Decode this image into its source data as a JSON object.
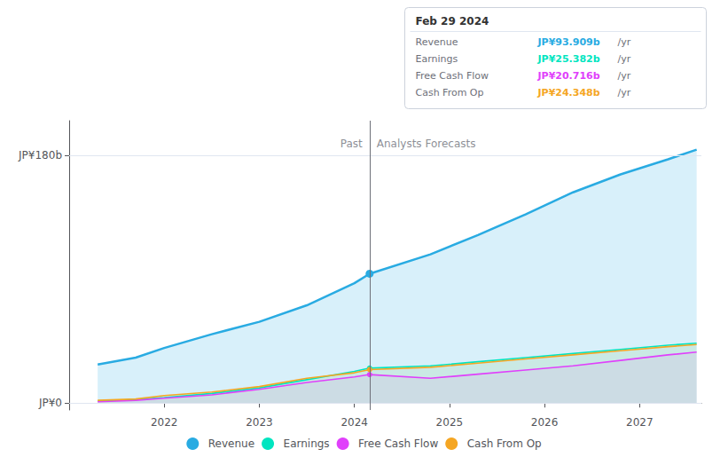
{
  "chart_data": {
    "type": "line",
    "x": [
      2021.3,
      2021.7,
      2022.0,
      2022.5,
      2023.0,
      2023.5,
      2024.0,
      2024.16,
      2024.8,
      2025.3,
      2025.8,
      2026.3,
      2026.8,
      2027.3,
      2027.6
    ],
    "series": [
      {
        "name": "Revenue",
        "color": "#29abe2",
        "values": [
          28,
          33,
          40,
          50,
          59,
          71,
          87,
          93.909,
          108,
          122,
          137,
          153,
          166,
          177,
          184
        ]
      },
      {
        "name": "Earnings",
        "color": "#00e5c0",
        "values": [
          1.5,
          2.5,
          4,
          7,
          11,
          17,
          23,
          25.382,
          27,
          30,
          33,
          36,
          39,
          42,
          43.5
        ]
      },
      {
        "name": "Free Cash Flow",
        "color": "#e040fb",
        "values": [
          1,
          2,
          3.5,
          6,
          10,
          15,
          19,
          20.716,
          18,
          21,
          24,
          27,
          31,
          35,
          37
        ]
      },
      {
        "name": "Cash From Op",
        "color": "#f5a623",
        "values": [
          2,
          3,
          5.5,
          8,
          12,
          18,
          22,
          24.348,
          26,
          29,
          32,
          35,
          38,
          41,
          42.5
        ]
      }
    ],
    "xlim": [
      2021.0,
      2027.65
    ],
    "xticks": [
      2022,
      2023,
      2024,
      2025,
      2026,
      2027
    ],
    "ylim": [
      -5,
      205
    ],
    "yticks": [
      {
        "value": 0,
        "label": "JP¥0"
      },
      {
        "value": 180,
        "label": "JP¥180b"
      }
    ],
    "grid": true,
    "legend": "bottom",
    "annotations": [
      {
        "text": "Past",
        "x": 2024.16
      },
      {
        "text": "Analysts Forecasts",
        "x": 2024.16
      }
    ],
    "tooltip": {
      "title": "Feb 29 2024",
      "rows": [
        {
          "label": "Revenue",
          "value": "JP¥93.909b",
          "unit": "/yr"
        },
        {
          "label": "Earnings",
          "value": "JP¥25.382b",
          "unit": "/yr"
        },
        {
          "label": "Free Cash Flow",
          "value": "JP¥20.716b",
          "unit": "/yr"
        },
        {
          "label": "Cash From Op",
          "value": "JP¥24.348b",
          "unit": "/yr"
        }
      ]
    }
  }
}
